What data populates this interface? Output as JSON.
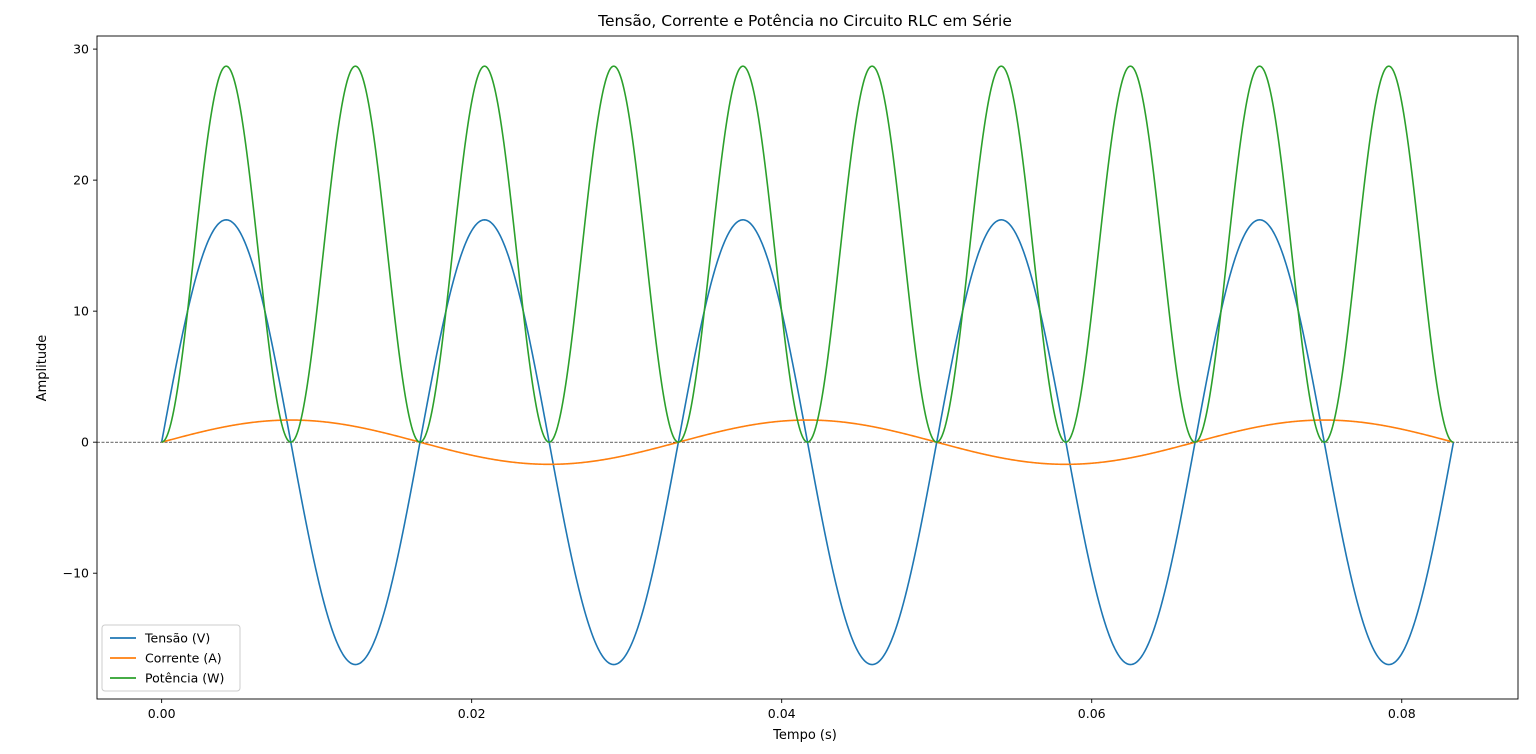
{
  "chart_data": {
    "type": "line",
    "title": "Tensão, Corrente e Potência no Circuito RLC em Série",
    "xlabel": "Tempo (s)",
    "ylabel": "Amplitude",
    "xlim": [
      -0.00417,
      0.0875
    ],
    "ylim": [
      -19.6,
      31.0
    ],
    "x_ticks": [
      0.0,
      0.02,
      0.04,
      0.06,
      0.08
    ],
    "x_tick_labels": [
      "0.00",
      "0.02",
      "0.04",
      "0.06",
      "0.08"
    ],
    "y_ticks": [
      -10,
      0,
      10,
      20,
      30
    ],
    "y_tick_labels": [
      "−10",
      "0",
      "10",
      "20",
      "30"
    ],
    "grid": false,
    "zero_line": true,
    "legend_position": "lower-left",
    "x_range": [
      0.0,
      0.08333
    ],
    "series": [
      {
        "name": "Tensão (V)",
        "color": "#1f77b4",
        "x": [
          0.0,
          0.00104,
          0.00208,
          0.00313,
          0.00417,
          0.00521,
          0.00625,
          0.00729,
          0.00833,
          0.00938,
          0.01042,
          0.01146,
          0.0125,
          0.01354,
          0.01458,
          0.01563,
          0.01667
        ],
        "values": [
          0.0,
          6.49,
          12.0,
          15.68,
          16.97,
          15.68,
          12.0,
          6.49,
          0.0,
          -6.49,
          -12.0,
          -15.68,
          -16.97,
          -15.68,
          -12.0,
          -6.49,
          0.0
        ],
        "period": 0.016667,
        "periods_shown": 5
      },
      {
        "name": "Corrente (A)",
        "color": "#ff7f0e",
        "x": [
          0.0,
          0.00208,
          0.00417,
          0.00625,
          0.00833,
          0.01042,
          0.0125,
          0.01458,
          0.01667,
          0.01875,
          0.02083,
          0.02292,
          0.025,
          0.02708,
          0.02917,
          0.03125,
          0.03333
        ],
        "values": [
          0.0,
          1.2,
          1.69,
          1.2,
          0.0,
          -1.2,
          -1.69,
          -1.2,
          0.0,
          1.2,
          1.69,
          1.2,
          0.0,
          -1.2,
          -1.69,
          -1.2,
          0.0
        ],
        "period": 0.033333,
        "periods_shown": 2.5
      },
      {
        "name": "Potência (W)",
        "color": "#2ca02c",
        "x": [
          0.0,
          0.00104,
          0.00208,
          0.00313,
          0.00417,
          0.00521,
          0.00625,
          0.00729,
          0.00833
        ],
        "values": [
          0.0,
          4.2,
          14.35,
          24.5,
          28.7,
          24.5,
          14.35,
          4.2,
          0.0
        ],
        "period": 0.008333,
        "periods_shown": 10
      }
    ]
  }
}
